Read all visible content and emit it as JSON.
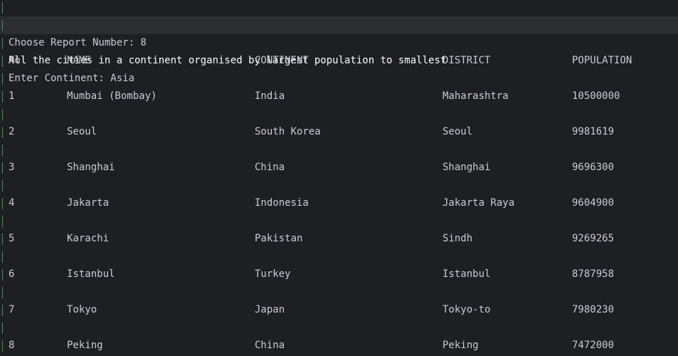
{
  "prompt_report": "Choose Report Number: 8",
  "report_title": "All the cities in a continent organised by largest population to smallest",
  "prompt_continent": "Enter Continent: Asia",
  "headers": {
    "no": "No",
    "name": "NAME",
    "continent": "CONTINENT",
    "district": "DISTRICT",
    "population": "POPULATION"
  },
  "rows": [
    {
      "no": "1",
      "name": "Mumbai (Bombay)",
      "continent": "India",
      "district": "Maharashtra",
      "population": "10500000"
    },
    {
      "no": "2",
      "name": "Seoul",
      "continent": "South Korea",
      "district": "Seoul",
      "population": "9981619"
    },
    {
      "no": "3",
      "name": "Shanghai",
      "continent": "China",
      "district": "Shanghai",
      "population": "9696300"
    },
    {
      "no": "4",
      "name": "Jakarta",
      "continent": "Indonesia",
      "district": "Jakarta Raya",
      "population": "9604900"
    },
    {
      "no": "5",
      "name": "Karachi",
      "continent": "Pakistan",
      "district": "Sindh",
      "population": "9269265"
    },
    {
      "no": "6",
      "name": "Istanbul",
      "continent": "Turkey",
      "district": "Istanbul",
      "population": "8787958"
    },
    {
      "no": "7",
      "name": "Tokyo",
      "continent": "Japan",
      "district": "Tokyo-to",
      "population": "7980230"
    },
    {
      "no": "8",
      "name": "Peking",
      "continent": "China",
      "district": "Peking",
      "population": "7472000"
    }
  ],
  "colors": {
    "background": "#1e1f22",
    "text": "#c9ccd2",
    "highlight_background": "#2b2d30",
    "gutter_marker": "#4d8a5a"
  }
}
